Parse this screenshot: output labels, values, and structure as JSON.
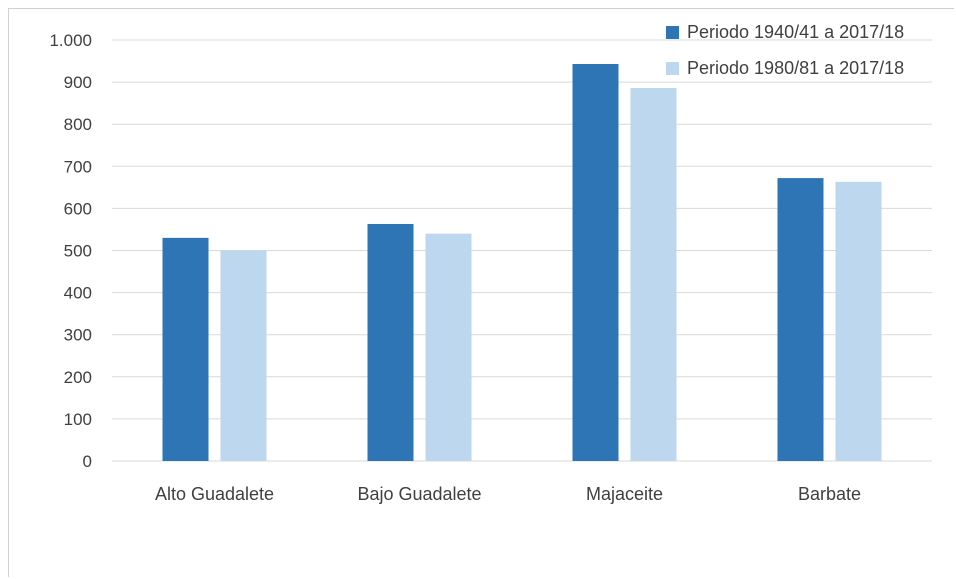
{
  "chart_data": {
    "type": "bar",
    "title": "",
    "xlabel": "",
    "ylabel": "",
    "categories": [
      "Alto Guadalete",
      "Bajo Guadalete",
      "Majaceite",
      "Barbate"
    ],
    "series": [
      {
        "name": "Periodo 1940/41 a 2017/18",
        "color": "#2e75b6",
        "values": [
          530,
          563,
          943,
          672
        ]
      },
      {
        "name": "Periodo 1980/81 a 2017/18",
        "color": "#bdd7ee",
        "values": [
          500,
          540,
          886,
          663
        ]
      }
    ],
    "ylim": [
      0,
      1000
    ],
    "yticks": [
      0,
      100,
      200,
      300,
      400,
      500,
      600,
      700,
      800,
      900,
      1000
    ],
    "ytick_labels": [
      "0",
      "100",
      "200",
      "300",
      "400",
      "500",
      "600",
      "700",
      "800",
      "900",
      "1.000"
    ],
    "grid": true,
    "gridline_color": "#d9d9d9",
    "legend_position": "top-right"
  }
}
